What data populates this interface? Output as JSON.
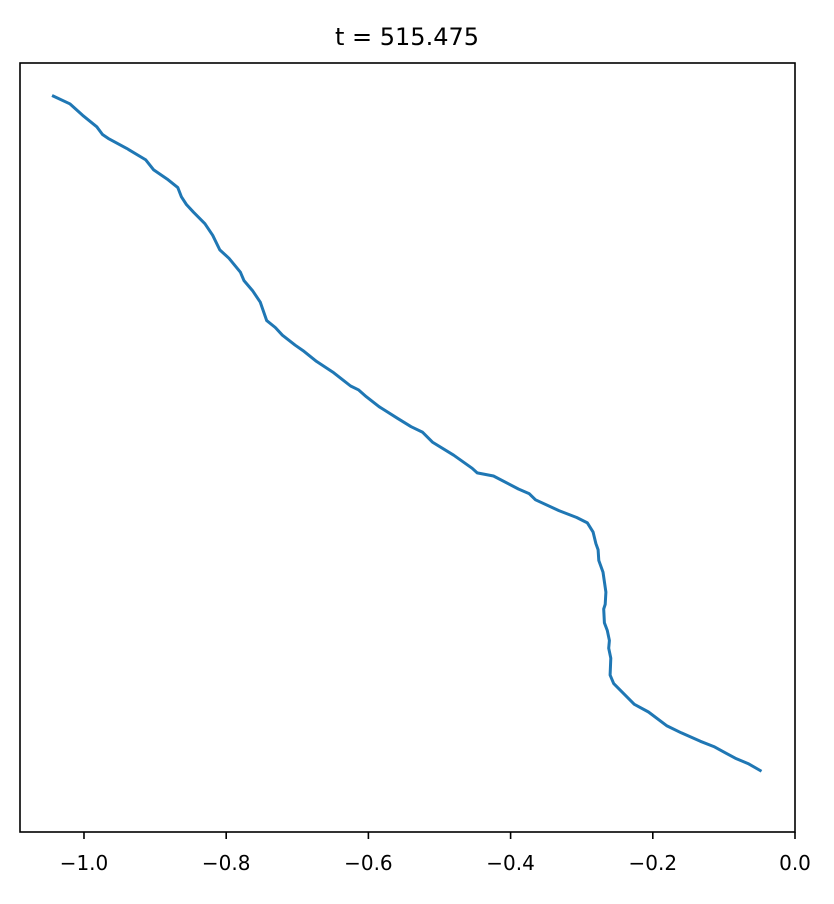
{
  "chart_data": {
    "type": "line",
    "title": "t = 515.475",
    "xlabel": "",
    "ylabel": "",
    "xlim": [
      -1.09,
      0.0
    ],
    "ylim": [
      0.0,
      1.0
    ],
    "x_ticks": [
      -1.0,
      -0.8,
      -0.6,
      -0.4,
      -0.2,
      0.0
    ],
    "x_tick_labels": [
      "−1.0",
      "−0.8",
      "−0.6",
      "−0.4",
      "−0.2",
      "0.0"
    ],
    "y_axis_visible": false,
    "grid": false,
    "legend": "none",
    "series": [
      {
        "color": "#1f77b4",
        "x": [
          -1.043,
          -1.02,
          -1.002,
          -0.982,
          -0.974,
          -0.966,
          -0.94,
          -0.913,
          -0.902,
          -0.883,
          -0.868,
          -0.863,
          -0.856,
          -0.846,
          -0.83,
          -0.819,
          -0.809,
          -0.796,
          -0.78,
          -0.775,
          -0.763,
          -0.752,
          -0.743,
          -0.731,
          -0.721,
          -0.703,
          -0.692,
          -0.673,
          -0.65,
          -0.625,
          -0.614,
          -0.603,
          -0.585,
          -0.559,
          -0.54,
          -0.524,
          -0.51,
          -0.48,
          -0.454,
          -0.447,
          -0.424,
          -0.389,
          -0.374,
          -0.365,
          -0.332,
          -0.307,
          -0.292,
          -0.284,
          -0.28,
          -0.277,
          -0.276,
          -0.27,
          -0.266,
          -0.267,
          -0.269,
          -0.268,
          -0.264,
          -0.261,
          -0.262,
          -0.259,
          -0.26,
          -0.255,
          -0.226,
          -0.206,
          -0.18,
          -0.16,
          -0.133,
          -0.114,
          -0.098,
          -0.084,
          -0.066,
          -0.049
        ],
        "y": [
          0.957,
          0.947,
          0.932,
          0.917,
          0.907,
          0.902,
          0.889,
          0.874,
          0.861,
          0.849,
          0.838,
          0.826,
          0.816,
          0.806,
          0.791,
          0.776,
          0.757,
          0.746,
          0.728,
          0.717,
          0.704,
          0.689,
          0.665,
          0.656,
          0.646,
          0.633,
          0.626,
          0.612,
          0.598,
          0.58,
          0.575,
          0.566,
          0.553,
          0.538,
          0.527,
          0.52,
          0.507,
          0.49,
          0.473,
          0.467,
          0.463,
          0.446,
          0.44,
          0.432,
          0.418,
          0.409,
          0.402,
          0.39,
          0.375,
          0.367,
          0.353,
          0.338,
          0.312,
          0.296,
          0.29,
          0.272,
          0.262,
          0.249,
          0.239,
          0.226,
          0.204,
          0.193,
          0.166,
          0.156,
          0.138,
          0.129,
          0.118,
          0.111,
          0.103,
          0.096,
          0.089,
          0.08
        ]
      }
    ]
  }
}
